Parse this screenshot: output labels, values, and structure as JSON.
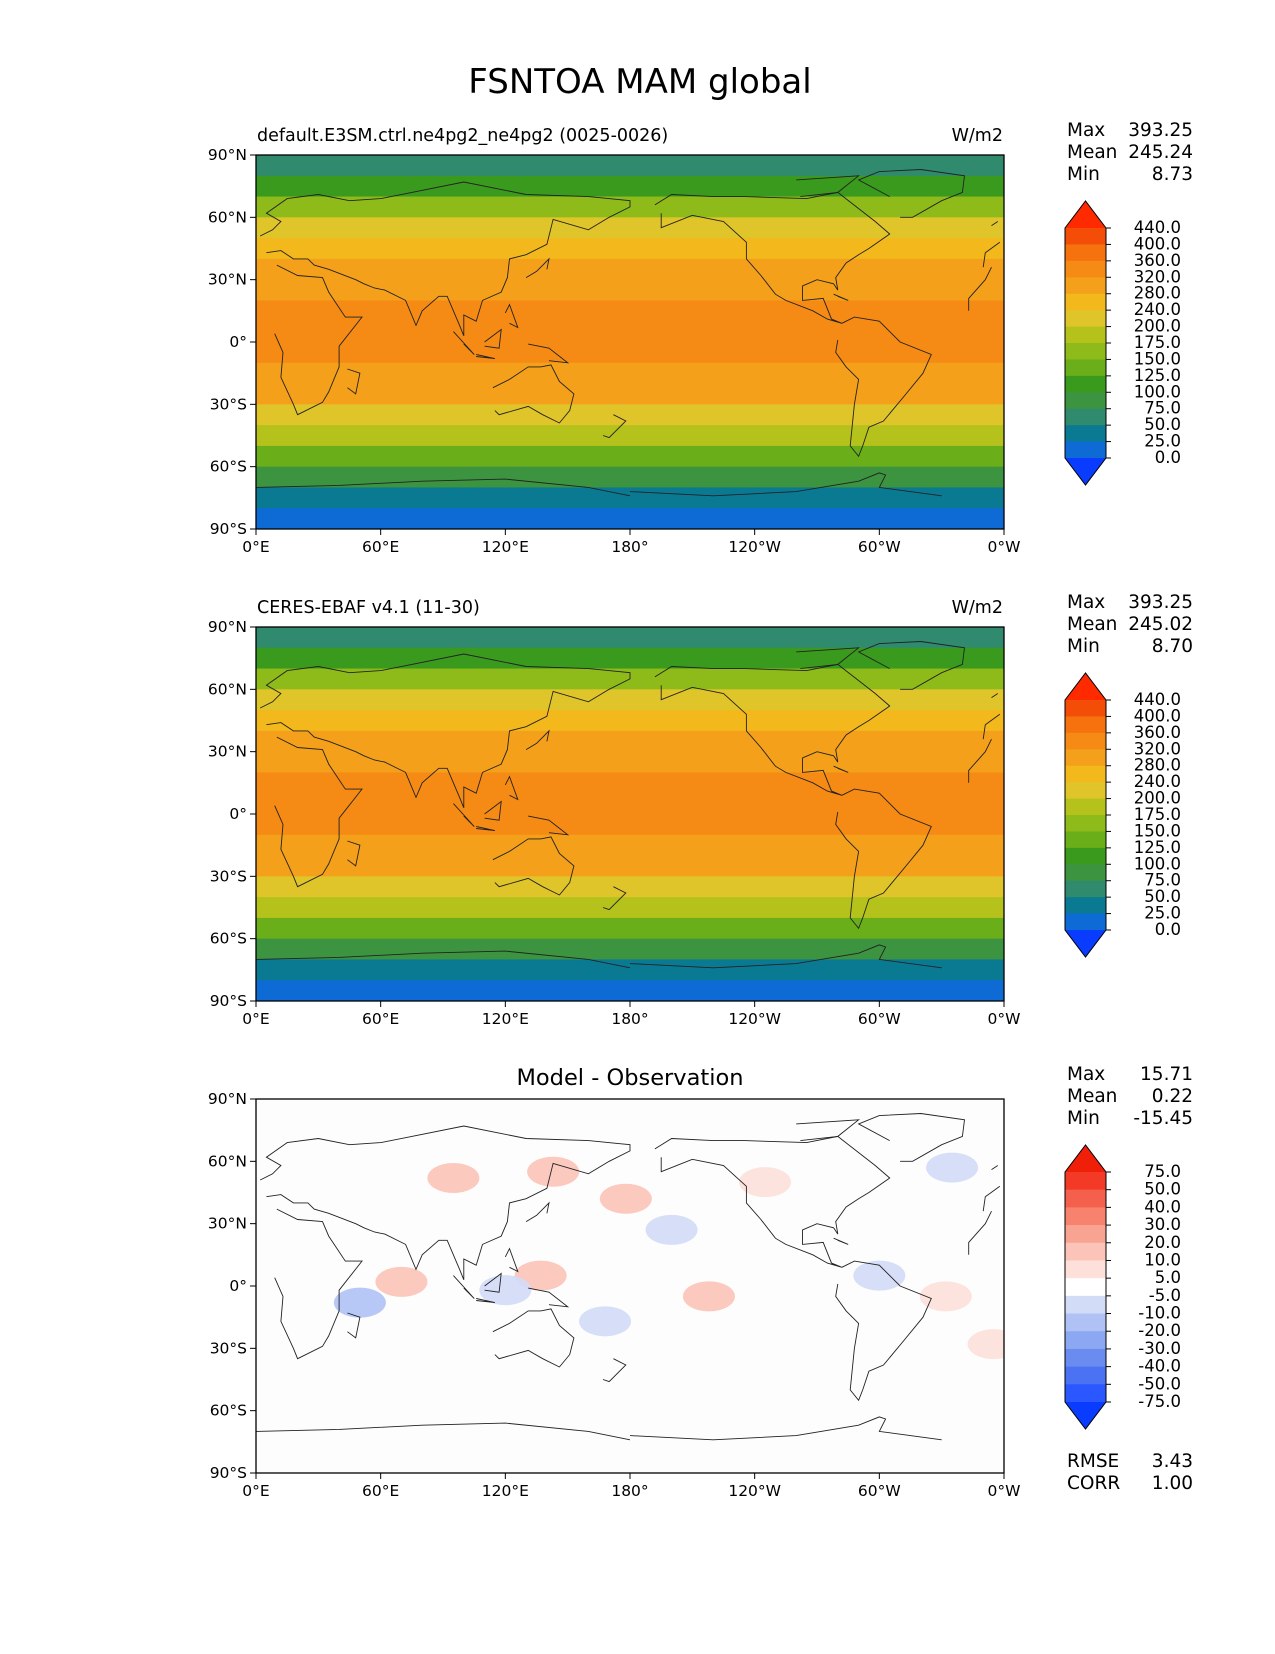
{
  "figure_title": "FSNTOA MAM global",
  "colors": {
    "main_levels": [
      "#0a3cff",
      "#0e6bd6",
      "#0a7a93",
      "#2f8a6e",
      "#3d9440",
      "#3a9a1e",
      "#6aae1a",
      "#8fbb1a",
      "#b6c21c",
      "#e0c52a",
      "#f2b81c",
      "#f5a01a",
      "#f58b14",
      "#f5720e",
      "#f44d08",
      "#ff2a00"
    ],
    "diff_levels": [
      "#0a3cff",
      "#2a57ff",
      "#4a72f2",
      "#6a8cf0",
      "#8da8f2",
      "#b0c2f5",
      "#d3dcf7",
      "#ffffff",
      "#fde0da",
      "#fcc3b8",
      "#f9a493",
      "#f7836f",
      "#f4604b",
      "#f23a26",
      "#f01f0a"
    ],
    "coast": "#222222",
    "model_fill": "#f2b81c",
    "diff_fill": "#fdfdfd"
  },
  "panels": [
    {
      "left_title": "default.E3SM.ctrl.ne4pg2_ne4pg2 (0025-0026)",
      "center_title": "",
      "units": "W/m2",
      "stats": [
        {
          "label": "Max",
          "value": "393.25"
        },
        {
          "label": "Mean",
          "value": "245.24"
        },
        {
          "label": "Min",
          "value": "8.73"
        }
      ],
      "colorbar_ticks": [
        "440.0",
        "400.0",
        "360.0",
        "320.0",
        "280.0",
        "240.0",
        "200.0",
        "175.0",
        "150.0",
        "125.0",
        "100.0",
        "75.0",
        "50.0",
        "25.0",
        "0.0"
      ]
    },
    {
      "left_title": "CERES-EBAF v4.1 (11-30)",
      "center_title": "",
      "units": "W/m2",
      "stats": [
        {
          "label": "Max",
          "value": "393.25"
        },
        {
          "label": "Mean",
          "value": "245.02"
        },
        {
          "label": "Min",
          "value": "8.70"
        }
      ],
      "colorbar_ticks": [
        "440.0",
        "400.0",
        "360.0",
        "320.0",
        "280.0",
        "240.0",
        "200.0",
        "175.0",
        "150.0",
        "125.0",
        "100.0",
        "75.0",
        "50.0",
        "25.0",
        "0.0"
      ]
    },
    {
      "left_title": "",
      "center_title": "Model - Observation",
      "units": "",
      "stats": [
        {
          "label": "Max",
          "value": "15.71"
        },
        {
          "label": "Mean",
          "value": "0.22"
        },
        {
          "label": "Min",
          "value": "-15.45"
        }
      ],
      "colorbar_ticks": [
        "75.0",
        "50.0",
        "40.0",
        "30.0",
        "20.0",
        "10.0",
        "5.0",
        "-5.0",
        "-10.0",
        "-20.0",
        "-30.0",
        "-40.0",
        "-50.0",
        "-75.0"
      ],
      "extra_stats": [
        {
          "label": "RMSE",
          "value": "3.43"
        },
        {
          "label": "CORR",
          "value": "1.00"
        }
      ]
    }
  ],
  "chart_data": [
    {
      "type": "heatmap",
      "title": "default.E3SM.ctrl.ne4pg2_ne4pg2 (0025-0026)",
      "units": "W/m2",
      "x_ticks": [
        "0°E",
        "60°E",
        "120°E",
        "180°",
        "120°W",
        "60°W",
        "0°W"
      ],
      "y_ticks": [
        "90°N",
        "60°N",
        "30°N",
        "0°",
        "30°S",
        "60°S",
        "90°S"
      ],
      "xlim": [
        0,
        360
      ],
      "ylim": [
        -90,
        90
      ],
      "stats": {
        "max": 393.25,
        "mean": 245.24,
        "min": 8.73
      },
      "zonal_mean": [
        {
          "lat": 85,
          "value": 70
        },
        {
          "lat": 75,
          "value": 110
        },
        {
          "lat": 65,
          "value": 170
        },
        {
          "lat": 55,
          "value": 205
        },
        {
          "lat": 45,
          "value": 245
        },
        {
          "lat": 35,
          "value": 285
        },
        {
          "lat": 25,
          "value": 305
        },
        {
          "lat": 15,
          "value": 320
        },
        {
          "lat": 5,
          "value": 320
        },
        {
          "lat": -5,
          "value": 320
        },
        {
          "lat": -15,
          "value": 310
        },
        {
          "lat": -25,
          "value": 280
        },
        {
          "lat": -35,
          "value": 230
        },
        {
          "lat": -45,
          "value": 175
        },
        {
          "lat": -55,
          "value": 130
        },
        {
          "lat": -65,
          "value": 85
        },
        {
          "lat": -75,
          "value": 25
        },
        {
          "lat": -85,
          "value": 15
        }
      ]
    },
    {
      "type": "heatmap",
      "title": "CERES-EBAF v4.1 (11-30)",
      "units": "W/m2",
      "x_ticks": [
        "0°E",
        "60°E",
        "120°E",
        "180°",
        "120°W",
        "60°W",
        "0°W"
      ],
      "y_ticks": [
        "90°N",
        "60°N",
        "30°N",
        "0°",
        "30°S",
        "60°S",
        "90°S"
      ],
      "xlim": [
        0,
        360
      ],
      "ylim": [
        -90,
        90
      ],
      "stats": {
        "max": 393.25,
        "mean": 245.02,
        "min": 8.7
      },
      "zonal_mean": [
        {
          "lat": 85,
          "value": 70
        },
        {
          "lat": 75,
          "value": 110
        },
        {
          "lat": 65,
          "value": 170
        },
        {
          "lat": 55,
          "value": 205
        },
        {
          "lat": 45,
          "value": 245
        },
        {
          "lat": 35,
          "value": 285
        },
        {
          "lat": 25,
          "value": 305
        },
        {
          "lat": 15,
          "value": 320
        },
        {
          "lat": 5,
          "value": 320
        },
        {
          "lat": -5,
          "value": 320
        },
        {
          "lat": -15,
          "value": 310
        },
        {
          "lat": -25,
          "value": 280
        },
        {
          "lat": -35,
          "value": 230
        },
        {
          "lat": -45,
          "value": 175
        },
        {
          "lat": -55,
          "value": 130
        },
        {
          "lat": -65,
          "value": 85
        },
        {
          "lat": -75,
          "value": 25
        },
        {
          "lat": -85,
          "value": 15
        }
      ]
    },
    {
      "type": "heatmap",
      "title": "Model - Observation",
      "x_ticks": [
        "0°E",
        "60°E",
        "120°E",
        "180°",
        "120°W",
        "60°W",
        "0°W"
      ],
      "y_ticks": [
        "90°N",
        "60°N",
        "30°N",
        "0°",
        "30°S",
        "60°S",
        "90°S"
      ],
      "xlim": [
        0,
        360
      ],
      "ylim": [
        -90,
        90
      ],
      "stats": {
        "max": 15.71,
        "mean": 0.22,
        "min": -15.45,
        "rmse": 3.43,
        "corr": 1.0
      },
      "anomalies": [
        {
          "lon": 95,
          "lat": 52,
          "value": 10
        },
        {
          "lon": 143,
          "lat": 55,
          "value": 10
        },
        {
          "lon": 178,
          "lat": 42,
          "value": 10
        },
        {
          "lon": 245,
          "lat": 50,
          "value": 5
        },
        {
          "lon": 335,
          "lat": 57,
          "value": -10
        },
        {
          "lon": 200,
          "lat": 27,
          "value": -10
        },
        {
          "lon": 137,
          "lat": 5,
          "value": 10
        },
        {
          "lon": 70,
          "lat": 2,
          "value": 10
        },
        {
          "lon": 50,
          "lat": -8,
          "value": -20
        },
        {
          "lon": 120,
          "lat": -2,
          "value": -10
        },
        {
          "lon": 218,
          "lat": -5,
          "value": 10
        },
        {
          "lon": 300,
          "lat": 5,
          "value": -10
        },
        {
          "lon": 168,
          "lat": -17,
          "value": -10
        },
        {
          "lon": 332,
          "lat": -5,
          "value": 5
        },
        {
          "lon": 355,
          "lat": -28,
          "value": 5
        }
      ]
    }
  ]
}
